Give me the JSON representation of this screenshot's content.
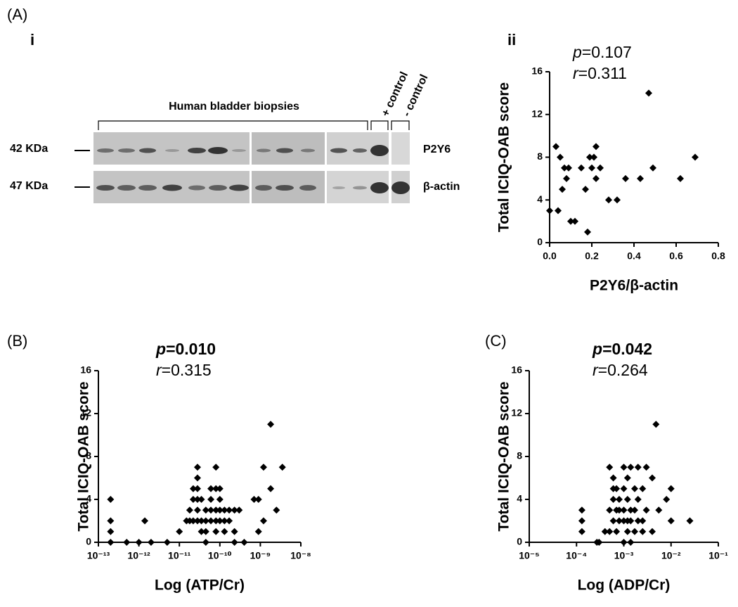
{
  "panel_labels": [
    "(A)",
    "i",
    "ii",
    "(B)",
    "(C)"
  ],
  "blot": {
    "title": "Human bladder biopsies",
    "controls": [
      "+ control",
      "- control"
    ],
    "markers": [
      "42 KDa",
      "47 KDa"
    ],
    "proteins": [
      "P2Y6",
      "β-actin"
    ]
  },
  "chart_data": [
    {
      "type": "scatter",
      "xlabel": "P2Y6/β-actin",
      "ylabel": "Total ICIQ-OAB score",
      "stats": [
        {
          "symbol": "p",
          "text": "=0.107",
          "bold": false
        },
        {
          "symbol": "r",
          "text": "=0.311",
          "bold": false
        }
      ],
      "xlog": false,
      "xlim": [
        0,
        0.8
      ],
      "xticks": [
        {
          "value": 0,
          "label": "0.0"
        },
        0.2,
        0.4,
        0.6,
        0.8
      ],
      "ylim": [
        0,
        16
      ],
      "yticks": [
        0,
        4,
        8,
        12,
        16
      ],
      "color": "#000000",
      "x": [
        0,
        0.03,
        0.04,
        0.05,
        0.06,
        0.07,
        0.08,
        0.09,
        0.1,
        0.12,
        0.15,
        0.17,
        0.18,
        0.19,
        0.2,
        0.21,
        0.22,
        0.22,
        0.24,
        0.28,
        0.32,
        0.36,
        0.43,
        0.47,
        0.49,
        0.62,
        0.69
      ],
      "values": [
        3,
        9,
        3,
        8,
        5,
        7,
        6,
        7,
        2,
        2,
        7,
        5,
        1,
        8,
        7,
        8,
        6,
        9,
        7,
        4,
        4,
        6,
        6,
        14,
        7,
        6,
        8
      ]
    },
    {
      "type": "scatter",
      "xlabel": "Log (ATP/Cr)",
      "ylabel": "Total ICIQ-OAB score",
      "stats": [
        {
          "symbol": "p",
          "text": "=0.010",
          "bold": true
        },
        {
          "symbol": "r",
          "text": "=0.315",
          "bold": false
        }
      ],
      "xlog": true,
      "xlim": [
        1e-13,
        1e-08
      ],
      "xticks": [
        {
          "value": 1e-13,
          "label": "10⁻¹³"
        },
        {
          "value": 1e-12,
          "label": "10⁻¹²"
        },
        {
          "value": 1e-11,
          "label": "10⁻¹¹"
        },
        {
          "value": 1e-10,
          "label": "10⁻¹⁰"
        },
        {
          "value": 1e-09,
          "label": "10⁻⁹"
        },
        {
          "value": 1e-08,
          "label": "10⁻⁸"
        }
      ],
      "ylim": [
        0,
        16
      ],
      "yticks": [
        0,
        4,
        8,
        12,
        16
      ],
      "color": "#000000",
      "x": [
        2e-13,
        2e-13,
        2e-13,
        2e-13,
        5e-13,
        1e-12,
        1.4e-12,
        2e-12,
        5e-12,
        1e-11,
        1.5e-11,
        1.8e-11,
        1.8e-11,
        2.2e-11,
        2.2e-11,
        2.2e-11,
        2.8e-11,
        2.8e-11,
        2.8e-11,
        2.8e-11,
        2.8e-11,
        2.8e-11,
        3.5e-11,
        3.5e-11,
        3.5e-11,
        4.5e-11,
        4.5e-11,
        4.5e-11,
        4.5e-11,
        6e-11,
        6e-11,
        6e-11,
        6e-11,
        8e-11,
        8e-11,
        8e-11,
        8e-11,
        8e-11,
        1e-10,
        1e-10,
        1e-10,
        1e-10,
        1.3e-10,
        1.3e-10,
        1.3e-10,
        1.7e-10,
        1.7e-10,
        2.3e-10,
        2.3e-10,
        2.3e-10,
        3e-10,
        4e-10,
        7e-10,
        9e-10,
        9e-10,
        1.2e-09,
        1.2e-09,
        1.8e-09,
        1.8e-09,
        2.5e-09,
        3.5e-09
      ],
      "values": [
        4,
        2,
        1,
        0,
        0,
        0,
        2,
        0,
        0,
        1,
        2,
        2,
        3,
        2,
        4,
        5,
        2,
        3,
        4,
        5,
        6,
        7,
        1,
        2,
        4,
        0,
        1,
        2,
        3,
        2,
        3,
        4,
        5,
        1,
        2,
        3,
        5,
        7,
        2,
        3,
        4,
        5,
        1,
        2,
        3,
        2,
        3,
        0,
        3,
        1,
        3,
        0,
        4,
        4,
        1,
        7,
        2,
        11,
        5,
        3,
        7
      ]
    },
    {
      "type": "scatter",
      "xlabel": "Log (ADP/Cr)",
      "ylabel": "Total ICIQ-OAB score",
      "stats": [
        {
          "symbol": "p",
          "text": "=0.042",
          "bold": true
        },
        {
          "symbol": "r",
          "text": "=0.264",
          "bold": false
        }
      ],
      "xlog": true,
      "xlim": [
        1e-05,
        0.1
      ],
      "xticks": [
        {
          "value": 1e-05,
          "label": "10⁻⁵"
        },
        {
          "value": 0.0001,
          "label": "10⁻⁴"
        },
        {
          "value": 0.001,
          "label": "10⁻³"
        },
        {
          "value": 0.01,
          "label": "10⁻²"
        },
        {
          "value": 0.1,
          "label": "10⁻¹"
        }
      ],
      "ylim": [
        0,
        16
      ],
      "yticks": [
        0,
        4,
        8,
        12,
        16
      ],
      "color": "#000000",
      "x": [
        0.00013,
        0.00013,
        0.00013,
        0.00027,
        0.0003,
        0.0004,
        0.0005,
        0.0005,
        0.0005,
        0.0006,
        0.0006,
        0.0006,
        0.0006,
        0.0007,
        0.0007,
        0.0007,
        0.0008,
        0.0008,
        0.0008,
        0.001,
        0.001,
        0.001,
        0.001,
        0.001,
        0.0012,
        0.0012,
        0.0012,
        0.0012,
        0.0014,
        0.0014,
        0.0014,
        0.0014,
        0.0017,
        0.0017,
        0.0017,
        0.002,
        0.002,
        0.002,
        0.0025,
        0.0025,
        0.0025,
        0.003,
        0.003,
        0.004,
        0.004,
        0.0048,
        0.0055,
        0.008,
        0.01,
        0.01,
        0.025
      ],
      "values": [
        3,
        2,
        1,
        0,
        0,
        1,
        3,
        7,
        1,
        2,
        4,
        5,
        6,
        1,
        3,
        5,
        2,
        3,
        4,
        0,
        2,
        3,
        5,
        7,
        1,
        2,
        4,
        6,
        0,
        2,
        3,
        7,
        1,
        3,
        5,
        2,
        4,
        7,
        1,
        2,
        5,
        3,
        7,
        1,
        6,
        11,
        3,
        4,
        5,
        2,
        2
      ]
    }
  ]
}
